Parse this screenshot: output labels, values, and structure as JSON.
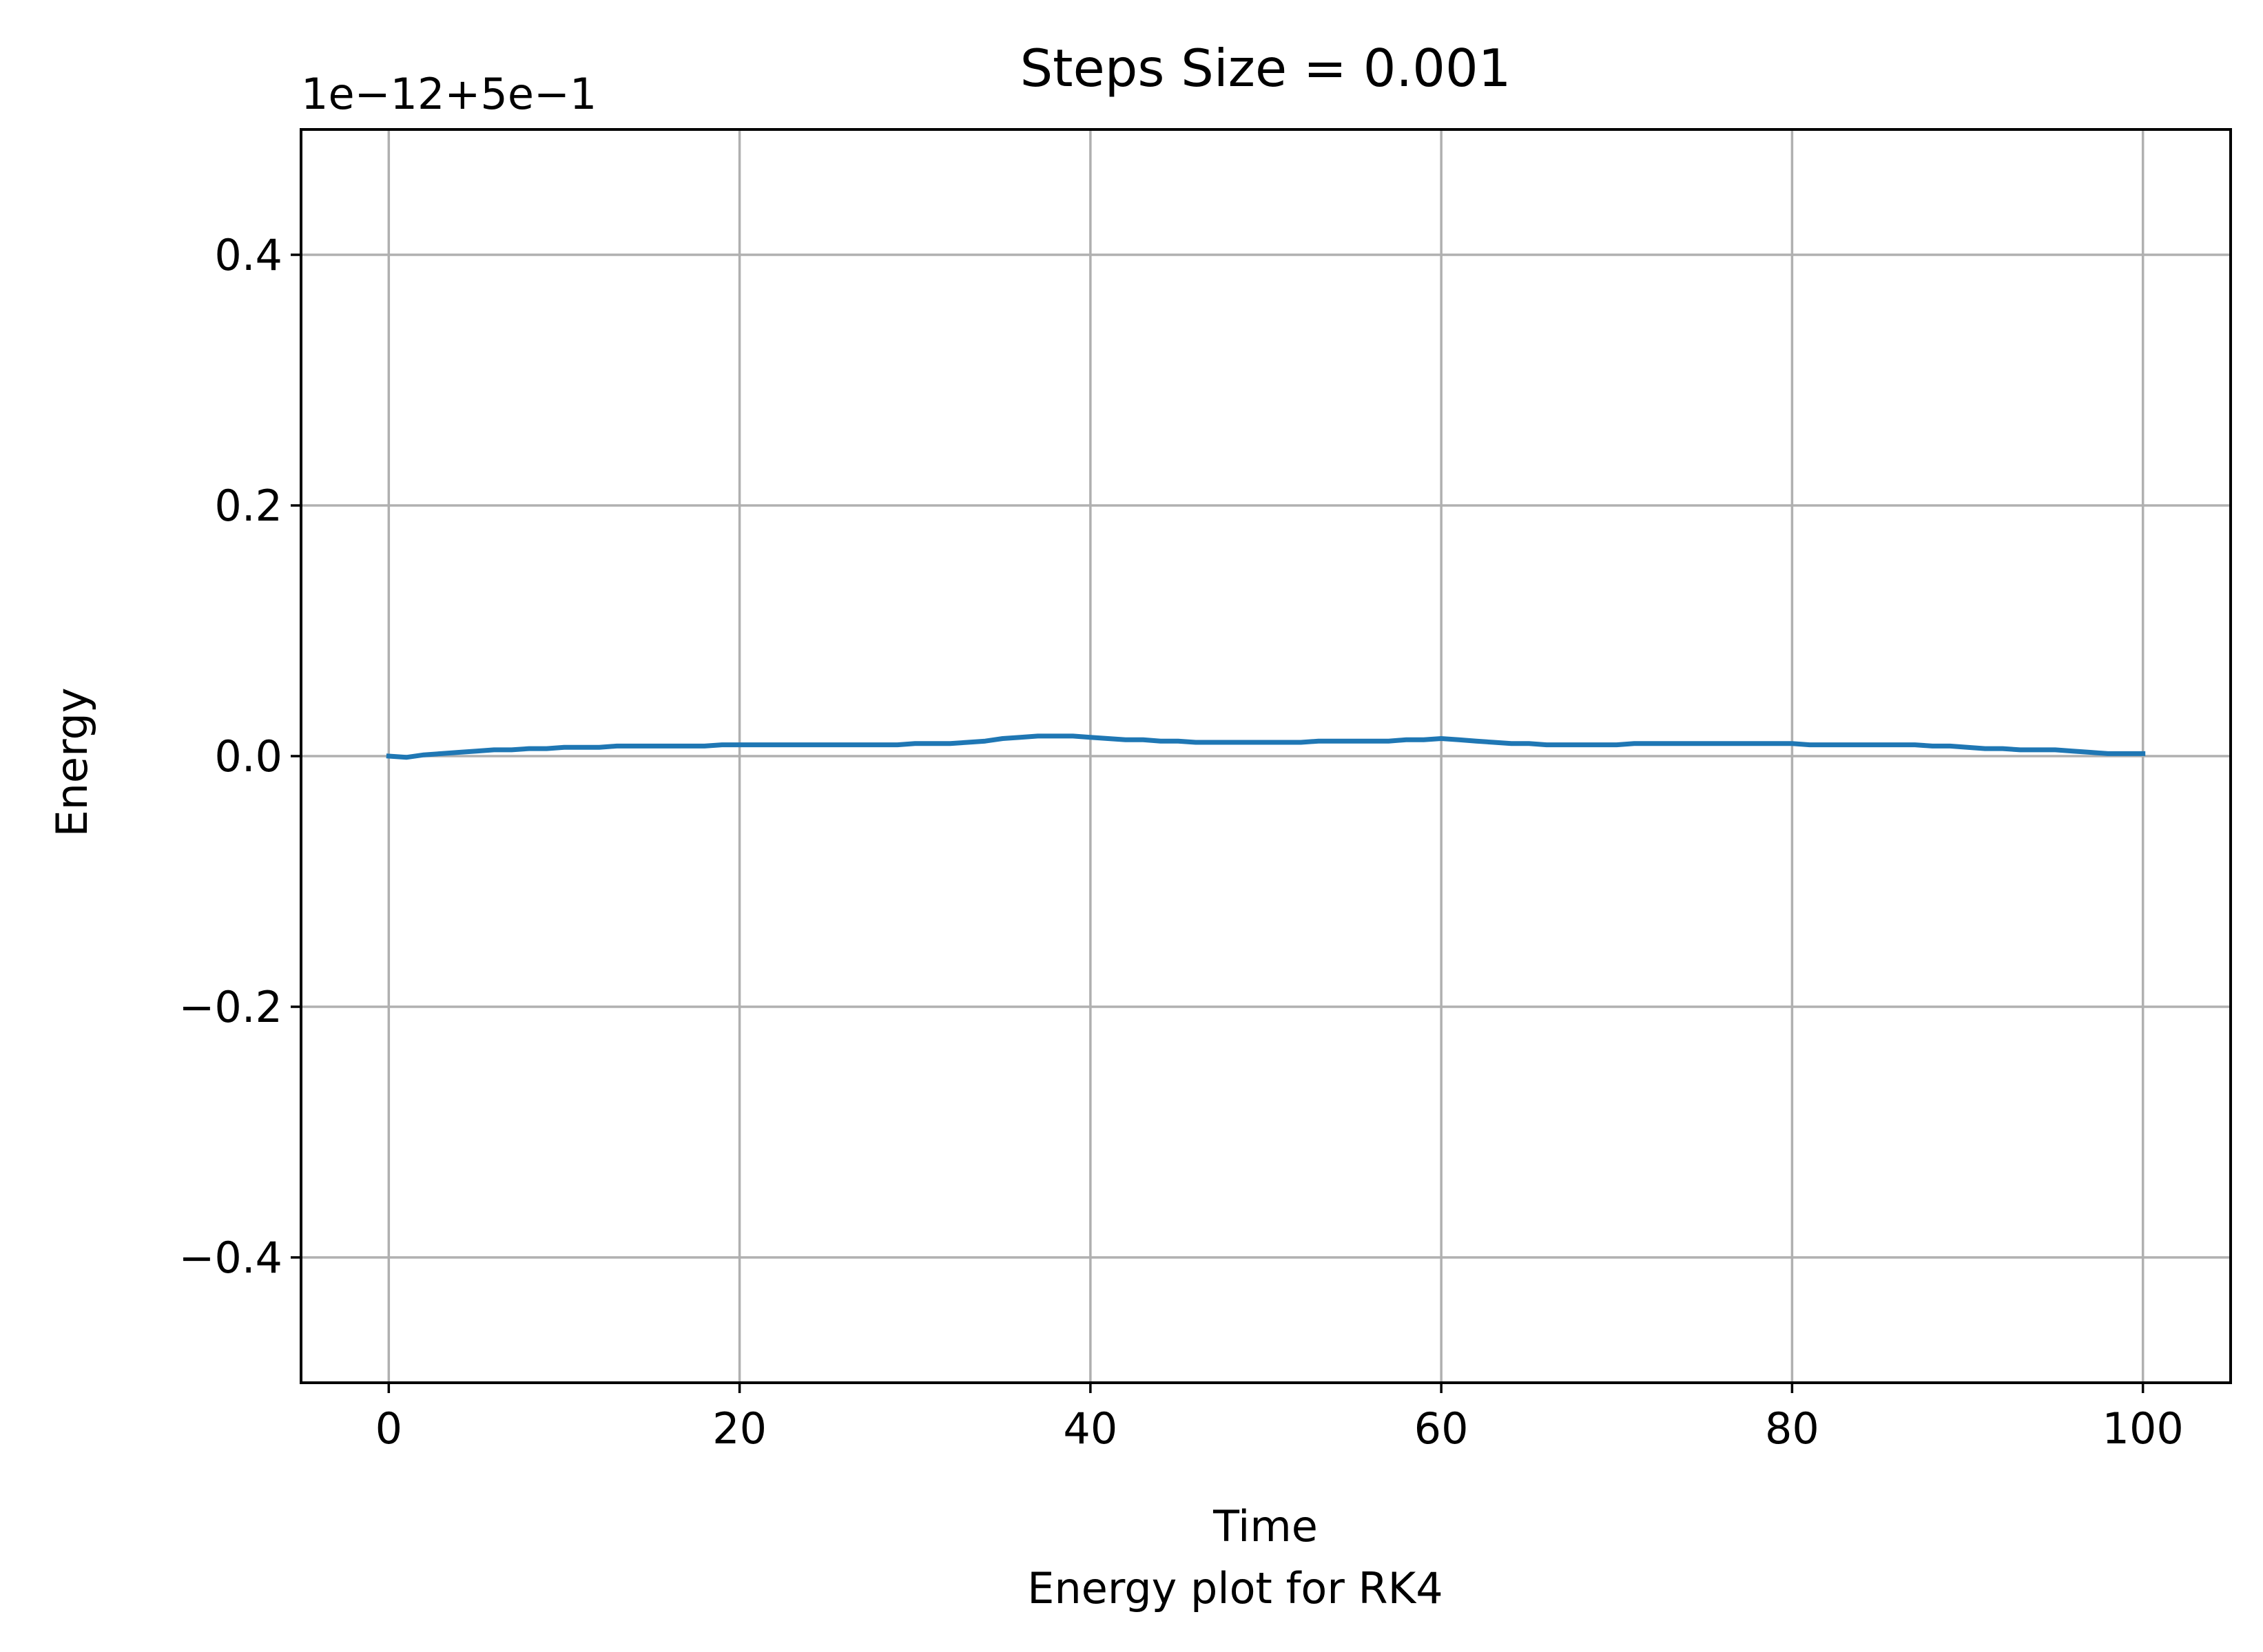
{
  "chart_data": {
    "type": "line",
    "title": "Steps Size = 0.001",
    "xlabel": "Time",
    "ylabel": "Energy",
    "caption": "Energy plot for RK4",
    "offset_label": "1e−12+5e−1",
    "xlim": [
      -5,
      105
    ],
    "ylim": [
      -0.5,
      0.5
    ],
    "x_ticks": [
      0,
      20,
      40,
      60,
      80,
      100
    ],
    "x_tick_labels": [
      "0",
      "20",
      "40",
      "60",
      "80",
      "100"
    ],
    "y_ticks": [
      -0.4,
      -0.2,
      0.0,
      0.2,
      0.4
    ],
    "y_tick_labels": [
      "−0.4",
      "−0.2",
      "0.0",
      "0.2",
      "0.4"
    ],
    "grid": true,
    "series_color": "#1f77b4",
    "grid_color": "#b0b0b0",
    "series": [
      {
        "x": [
          0,
          1,
          2,
          3,
          4,
          5,
          6,
          7,
          8,
          9,
          10,
          11,
          12,
          13,
          14,
          15,
          16,
          17,
          18,
          19,
          20,
          21,
          22,
          23,
          24,
          25,
          26,
          27,
          28,
          29,
          30,
          31,
          32,
          33,
          34,
          35,
          36,
          37,
          38,
          39,
          40,
          41,
          42,
          43,
          44,
          45,
          46,
          47,
          48,
          49,
          50,
          51,
          52,
          53,
          54,
          55,
          56,
          57,
          58,
          59,
          60,
          61,
          62,
          63,
          64,
          65,
          66,
          67,
          68,
          69,
          70,
          71,
          72,
          73,
          74,
          75,
          76,
          77,
          78,
          79,
          80,
          81,
          82,
          83,
          84,
          85,
          86,
          87,
          88,
          89,
          90,
          91,
          92,
          93,
          94,
          95,
          96,
          97,
          98,
          99,
          100
        ],
        "y": [
          0.0,
          -0.001,
          0.001,
          0.002,
          0.003,
          0.004,
          0.005,
          0.005,
          0.006,
          0.006,
          0.007,
          0.007,
          0.007,
          0.008,
          0.008,
          0.008,
          0.008,
          0.008,
          0.008,
          0.009,
          0.009,
          0.009,
          0.009,
          0.009,
          0.009,
          0.009,
          0.009,
          0.009,
          0.009,
          0.009,
          0.01,
          0.01,
          0.01,
          0.011,
          0.012,
          0.014,
          0.015,
          0.016,
          0.016,
          0.016,
          0.015,
          0.014,
          0.013,
          0.013,
          0.012,
          0.012,
          0.011,
          0.011,
          0.011,
          0.011,
          0.011,
          0.011,
          0.011,
          0.012,
          0.012,
          0.012,
          0.012,
          0.012,
          0.013,
          0.013,
          0.014,
          0.013,
          0.012,
          0.011,
          0.01,
          0.01,
          0.009,
          0.009,
          0.009,
          0.009,
          0.009,
          0.01,
          0.01,
          0.01,
          0.01,
          0.01,
          0.01,
          0.01,
          0.01,
          0.01,
          0.01,
          0.009,
          0.009,
          0.009,
          0.009,
          0.009,
          0.009,
          0.009,
          0.008,
          0.008,
          0.007,
          0.006,
          0.006,
          0.005,
          0.005,
          0.005,
          0.004,
          0.003,
          0.002,
          0.002,
          0.002
        ]
      }
    ]
  }
}
